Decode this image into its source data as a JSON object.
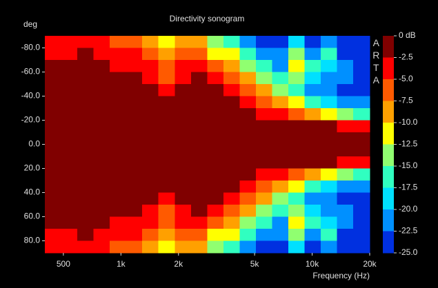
{
  "chart_data": {
    "type": "heatmap",
    "title": "Directivity sonogram",
    "ylabel": "deg",
    "xlabel": "Frequency (Hz)",
    "watermark": "ARTA",
    "xscale": "log",
    "xlim": [
      400,
      20000
    ],
    "xticks": [
      500,
      {
        "value": 1000,
        "label": "1k"
      },
      {
        "value": 2000,
        "label": "2k"
      },
      {
        "value": 5000,
        "label": "5k"
      },
      {
        "value": 10000,
        "label": "10k"
      },
      {
        "value": 20000,
        "label": "20k"
      }
    ],
    "ylim": [
      -90,
      90
    ],
    "yticks": [
      {
        "value": -80,
        "label": "-80.0"
      },
      {
        "value": -60,
        "label": "-60.0"
      },
      {
        "value": -40,
        "label": "-40.0"
      },
      {
        "value": -20,
        "label": "-20.0"
      },
      {
        "value": 0,
        "label": "0.0"
      },
      {
        "value": 20,
        "label": "20.0"
      },
      {
        "value": 40,
        "label": "40.0"
      },
      {
        "value": 60,
        "label": "60.0"
      },
      {
        "value": 80,
        "label": "80.0"
      }
    ],
    "x": [
      441,
      536,
      652,
      793,
      964,
      1172,
      1425,
      1733,
      2107,
      2562,
      3115,
      3787,
      4605,
      5600,
      6808,
      8278,
      10066,
      12239,
      14882,
      18095
    ],
    "y": [
      -85,
      -75,
      -65,
      -55,
      -45,
      -35,
      -25,
      -15,
      -5,
      5,
      15,
      25,
      35,
      45,
      55,
      65,
      75,
      85
    ],
    "z": [
      [
        -4,
        -4,
        -4,
        -4,
        -6,
        -6,
        -9,
        -11,
        -9,
        -9,
        -14,
        -16,
        -21,
        -24,
        -24,
        -19,
        -24,
        -21,
        -24,
        -24
      ],
      [
        -4,
        -4,
        -1,
        -4,
        -4,
        -4,
        -6,
        -9,
        -6,
        -6,
        -11,
        -11,
        -16,
        -21,
        -21,
        -14,
        -21,
        -16,
        -24,
        -24
      ],
      [
        -1,
        -1,
        -1,
        -1,
        -4,
        -4,
        -4,
        -6,
        -4,
        -4,
        -6,
        -9,
        -14,
        -16,
        -21,
        -11,
        -16,
        -19,
        -21,
        -24
      ],
      [
        -1,
        -1,
        -1,
        -1,
        -1,
        -1,
        -4,
        -6,
        -4,
        -1,
        -4,
        -6,
        -9,
        -14,
        -16,
        -14,
        -19,
        -21,
        -21,
        -24
      ],
      [
        -1,
        -1,
        -1,
        -1,
        -1,
        -1,
        -1,
        -4,
        -1,
        -1,
        -1,
        -4,
        -6,
        -9,
        -14,
        -16,
        -21,
        -21,
        -24,
        -24
      ],
      [
        -1,
        -1,
        -1,
        -1,
        -1,
        -1,
        -1,
        -1,
        -1,
        -1,
        -1,
        -1,
        -4,
        -6,
        -9,
        -11,
        -16,
        -19,
        -21,
        -21
      ],
      [
        -1,
        -1,
        -1,
        -1,
        -1,
        -1,
        -1,
        -1,
        -1,
        -1,
        -1,
        -1,
        -1,
        -4,
        -4,
        -6,
        -9,
        -11,
        -14,
        -16
      ],
      [
        -1,
        -1,
        -1,
        -1,
        -1,
        -1,
        -1,
        -1,
        -1,
        -1,
        -1,
        -1,
        -1,
        -1,
        -1,
        -1,
        -1,
        -1,
        -4,
        -4
      ],
      [
        -1,
        -1,
        -1,
        -1,
        -1,
        -1,
        -1,
        -1,
        -1,
        -1,
        -1,
        -1,
        -1,
        -1,
        -1,
        -1,
        -1,
        -1,
        -1,
        -1
      ],
      [
        -1,
        -1,
        -1,
        -1,
        -1,
        -1,
        -1,
        -1,
        -1,
        -1,
        -1,
        -1,
        -1,
        -1,
        -1,
        -1,
        -1,
        -1,
        -1,
        -1
      ],
      [
        -1,
        -1,
        -1,
        -1,
        -1,
        -1,
        -1,
        -1,
        -1,
        -1,
        -1,
        -1,
        -1,
        -1,
        -1,
        -1,
        -1,
        -1,
        -4,
        -4
      ],
      [
        -1,
        -1,
        -1,
        -1,
        -1,
        -1,
        -1,
        -1,
        -1,
        -1,
        -1,
        -1,
        -1,
        -4,
        -4,
        -6,
        -9,
        -11,
        -14,
        -16
      ],
      [
        -1,
        -1,
        -1,
        -1,
        -1,
        -1,
        -1,
        -1,
        -1,
        -1,
        -1,
        -1,
        -4,
        -6,
        -9,
        -11,
        -16,
        -19,
        -21,
        -21
      ],
      [
        -1,
        -1,
        -1,
        -1,
        -1,
        -1,
        -1,
        -4,
        -1,
        -1,
        -1,
        -4,
        -6,
        -9,
        -14,
        -16,
        -21,
        -21,
        -24,
        -24
      ],
      [
        -1,
        -1,
        -1,
        -1,
        -1,
        -1,
        -4,
        -6,
        -4,
        -1,
        -4,
        -6,
        -9,
        -14,
        -16,
        -14,
        -19,
        -21,
        -21,
        -24
      ],
      [
        -1,
        -1,
        -1,
        -1,
        -4,
        -4,
        -4,
        -6,
        -4,
        -4,
        -6,
        -9,
        -14,
        -16,
        -21,
        -11,
        -16,
        -19,
        -21,
        -24
      ],
      [
        -4,
        -4,
        -1,
        -4,
        -4,
        -4,
        -6,
        -9,
        -6,
        -6,
        -11,
        -11,
        -16,
        -21,
        -21,
        -14,
        -21,
        -16,
        -24,
        -24
      ],
      [
        -4,
        -4,
        -4,
        -4,
        -6,
        -6,
        -9,
        -11,
        -9,
        -9,
        -14,
        -16,
        -21,
        -24,
        -24,
        -19,
        -24,
        -21,
        -24,
        -24
      ]
    ],
    "colorbar": {
      "ticks": [
        {
          "value": 0,
          "label": "0 dB"
        },
        -2.5,
        {
          "value": -5,
          "label": "-5.0"
        },
        -7.5,
        {
          "value": -10,
          "label": "-10.0"
        },
        -12.5,
        {
          "value": -15,
          "label": "-15.0"
        },
        -17.5,
        {
          "value": -20,
          "label": "-20.0"
        },
        -22.5,
        {
          "value": -25,
          "label": "-25.0"
        }
      ],
      "colors": [
        "#800000",
        "#ff0000",
        "#ff5a00",
        "#ffa000",
        "#ffff00",
        "#90ff70",
        "#30ffc0",
        "#00e0ff",
        "#0090ff",
        "#0030e0"
      ]
    }
  }
}
